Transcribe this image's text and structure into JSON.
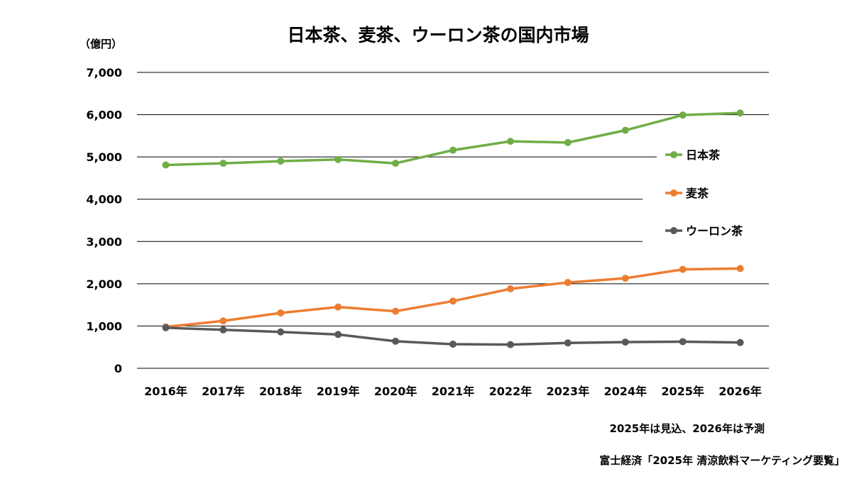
{
  "chart_data": {
    "type": "line",
    "title": "日本茶、麦茶、ウーロン茶の国内市場",
    "unit_label": "（億円）",
    "categories": [
      "2016年",
      "2017年",
      "2018年",
      "2019年",
      "2020年",
      "2021年",
      "2022年",
      "2023年",
      "2024年",
      "2025年",
      "2026年"
    ],
    "ylim": [
      0,
      7000
    ],
    "yticks": [
      0,
      1000,
      2000,
      3000,
      4000,
      5000,
      6000,
      7000
    ],
    "ytick_labels": [
      "0",
      "1,000",
      "2,000",
      "3,000",
      "4,000",
      "5,000",
      "6,000",
      "7,000"
    ],
    "grid": true,
    "legend_position": "right",
    "series": [
      {
        "name": "日本茶",
        "color": "#70ad47",
        "values": [
          4810,
          4850,
          4900,
          4940,
          4850,
          5160,
          5370,
          5340,
          5630,
          5990,
          6040
        ]
      },
      {
        "name": "麦茶",
        "color": "#ed7d31",
        "values": [
          980,
          1120,
          1310,
          1450,
          1350,
          1590,
          1880,
          2030,
          2130,
          2340,
          2360
        ]
      },
      {
        "name": "ウーロン茶",
        "color": "#595959",
        "values": [
          960,
          910,
          860,
          800,
          640,
          570,
          560,
          600,
          620,
          630,
          610
        ]
      }
    ],
    "notes": {
      "forecast": "2025年は見込、2026年は予測",
      "source": "富士経済「2025年 清涼飲料マーケティング要覧」"
    }
  }
}
